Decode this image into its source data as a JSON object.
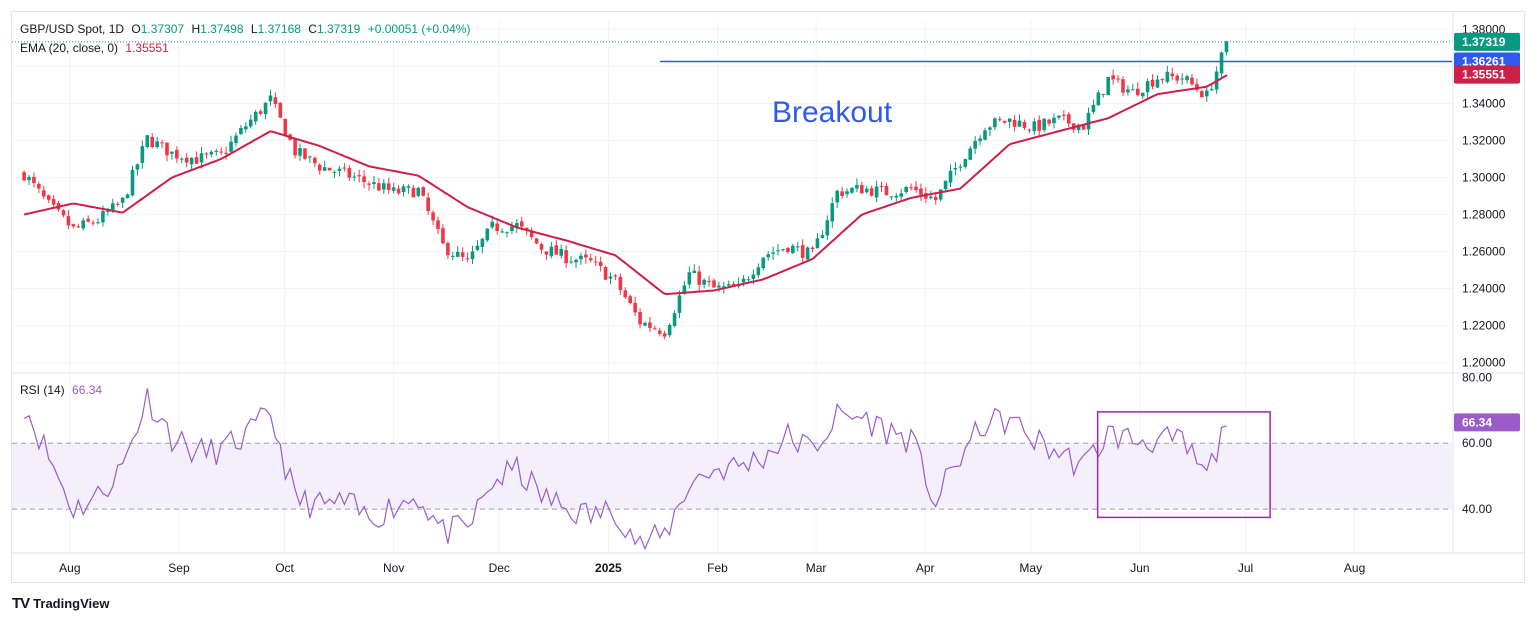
{
  "header": {
    "symbol": "GBP/USD Spot, 1D",
    "open_label": "O",
    "open": "1.37307",
    "high_label": "H",
    "high": "1.37498",
    "low_label": "L",
    "low": "1.37168",
    "close_label": "C",
    "close": "1.37319",
    "change": "+0.00051 (+0.04%)",
    "ema_label": "EMA (20, close, 0)",
    "ema_value": "1.35551",
    "rsi_label": "RSI (14)",
    "rsi_value": "66.34"
  },
  "annotation": {
    "breakout_text": "Breakout",
    "breakout_level": 1.3626
  },
  "badges": {
    "close": "1.37319",
    "breakout": "1.36261",
    "ema": "1.35551",
    "rsi": "66.34"
  },
  "brand": {
    "logo": "TV",
    "name": "TradingView"
  },
  "colors": {
    "up": "#089981",
    "down": "#f23645",
    "ema": "#cc1f4a",
    "rsi": "#9c5cc7",
    "rsi_band": "#f3effb",
    "breakout": "#2f5be8",
    "box": "#9c27b0"
  },
  "chart_data": [
    {
      "type": "candlestick",
      "title": "GBP/USD Spot, 1D",
      "x_tick_labels": [
        "Aug",
        "Sep",
        "Oct",
        "Nov",
        "Dec",
        "2025",
        "Feb",
        "Mar",
        "Apr",
        "May",
        "Jun",
        "Jul",
        "Aug"
      ],
      "y_tick_labels": [
        "1.20000",
        "1.22000",
        "1.24000",
        "1.26000",
        "1.28000",
        "1.30000",
        "1.32000",
        "1.34000",
        "1.36000",
        "1.38000"
      ],
      "ylim": [
        1.195,
        1.385
      ],
      "grid": true,
      "price_weekly": [
        [
          "2024-07-19",
          1.302
        ],
        [
          "2024-07-26",
          1.285
        ],
        [
          "2024-08-02",
          1.272
        ],
        [
          "2024-08-09",
          1.277
        ],
        [
          "2024-08-16",
          1.287
        ],
        [
          "2024-08-23",
          1.321
        ],
        [
          "2024-08-30",
          1.313
        ],
        [
          "2024-09-06",
          1.31
        ],
        [
          "2024-09-13",
          1.312
        ],
        [
          "2024-09-20",
          1.328
        ],
        [
          "2024-09-27",
          1.342
        ],
        [
          "2024-10-04",
          1.314
        ],
        [
          "2024-10-11",
          1.306
        ],
        [
          "2024-10-18",
          1.302
        ],
        [
          "2024-10-25",
          1.297
        ],
        [
          "2024-11-01",
          1.292
        ],
        [
          "2024-11-08",
          1.293
        ],
        [
          "2024-11-15",
          1.263
        ],
        [
          "2024-11-22",
          1.254
        ],
        [
          "2024-11-29",
          1.273
        ],
        [
          "2024-12-06",
          1.274
        ],
        [
          "2024-12-13",
          1.262
        ],
        [
          "2024-12-20",
          1.257
        ],
        [
          "2024-12-27",
          1.254
        ],
        [
          "2025-01-03",
          1.244
        ],
        [
          "2025-01-10",
          1.222
        ],
        [
          "2025-01-17",
          1.217
        ],
        [
          "2025-01-24",
          1.248
        ],
        [
          "2025-01-31",
          1.24
        ],
        [
          "2025-02-07",
          1.24
        ],
        [
          "2025-02-14",
          1.258
        ],
        [
          "2025-02-21",
          1.263
        ],
        [
          "2025-02-28",
          1.258
        ],
        [
          "2025-03-07",
          1.292
        ],
        [
          "2025-03-14",
          1.294
        ],
        [
          "2025-03-21",
          1.292
        ],
        [
          "2025-03-28",
          1.294
        ],
        [
          "2025-04-04",
          1.288
        ],
        [
          "2025-04-11",
          1.309
        ],
        [
          "2025-04-18",
          1.328
        ],
        [
          "2025-04-25",
          1.331
        ],
        [
          "2025-05-02",
          1.327
        ],
        [
          "2025-05-09",
          1.331
        ],
        [
          "2025-05-16",
          1.328
        ],
        [
          "2025-05-23",
          1.353
        ],
        [
          "2025-05-30",
          1.346
        ],
        [
          "2025-06-06",
          1.354
        ],
        [
          "2025-06-13",
          1.354
        ],
        [
          "2025-06-20",
          1.344
        ],
        [
          "2025-06-26",
          1.373
        ]
      ],
      "series": [
        {
          "name": "EMA (20, close, 0)",
          "values": [
            [
              "2024-07-19",
              1.28
            ],
            [
              "2024-08-02",
              1.286
            ],
            [
              "2024-08-16",
              1.281
            ],
            [
              "2024-08-30",
              1.3
            ],
            [
              "2024-09-13",
              1.31
            ],
            [
              "2024-09-27",
              1.325
            ],
            [
              "2024-10-11",
              1.317
            ],
            [
              "2024-10-25",
              1.306
            ],
            [
              "2024-11-08",
              1.301
            ],
            [
              "2024-11-22",
              1.284
            ],
            [
              "2024-12-06",
              1.273
            ],
            [
              "2024-12-20",
              1.266
            ],
            [
              "2025-01-03",
              1.258
            ],
            [
              "2025-01-17",
              1.237
            ],
            [
              "2025-01-31",
              1.239
            ],
            [
              "2025-02-14",
              1.245
            ],
            [
              "2025-02-28",
              1.256
            ],
            [
              "2025-03-14",
              1.28
            ],
            [
              "2025-03-28",
              1.289
            ],
            [
              "2025-04-11",
              1.294
            ],
            [
              "2025-04-25",
              1.318
            ],
            [
              "2025-05-09",
              1.325
            ],
            [
              "2025-05-23",
              1.332
            ],
            [
              "2025-06-06",
              1.345
            ],
            [
              "2025-06-20",
              1.349
            ],
            [
              "2025-06-26",
              1.3555
            ]
          ]
        }
      ],
      "breakout_line": 1.3626
    },
    {
      "type": "line",
      "title": "RSI (14)",
      "y_tick_labels": [
        "40.00",
        "60.00",
        "80.00"
      ],
      "ylim": [
        27,
        81
      ],
      "band": [
        40,
        60
      ],
      "series": [
        {
          "name": "RSI (14)",
          "values": [
            [
              "2024-07-19",
              72
            ],
            [
              "2024-07-26",
              56
            ],
            [
              "2024-08-02",
              40
            ],
            [
              "2024-08-09",
              44
            ],
            [
              "2024-08-16",
              53
            ],
            [
              "2024-08-23",
              74
            ],
            [
              "2024-08-30",
              62
            ],
            [
              "2024-09-06",
              57
            ],
            [
              "2024-09-13",
              58
            ],
            [
              "2024-09-20",
              62
            ],
            [
              "2024-09-27",
              69
            ],
            [
              "2024-10-04",
              43
            ],
            [
              "2024-10-11",
              41
            ],
            [
              "2024-10-18",
              42
            ],
            [
              "2024-10-25",
              37
            ],
            [
              "2024-11-01",
              41
            ],
            [
              "2024-11-08",
              44
            ],
            [
              "2024-11-15",
              33
            ],
            [
              "2024-11-22",
              34
            ],
            [
              "2024-11-29",
              48
            ],
            [
              "2024-12-06",
              52
            ],
            [
              "2024-12-13",
              44
            ],
            [
              "2024-12-20",
              40
            ],
            [
              "2024-12-27",
              38
            ],
            [
              "2025-01-03",
              40
            ],
            [
              "2025-01-10",
              29
            ],
            [
              "2025-01-17",
              32
            ],
            [
              "2025-01-24",
              48
            ],
            [
              "2025-01-31",
              52
            ],
            [
              "2025-02-07",
              53
            ],
            [
              "2025-02-14",
              56
            ],
            [
              "2025-02-21",
              62
            ],
            [
              "2025-02-28",
              58
            ],
            [
              "2025-03-07",
              68
            ],
            [
              "2025-03-14",
              68
            ],
            [
              "2025-03-21",
              64
            ],
            [
              "2025-03-28",
              61
            ],
            [
              "2025-04-04",
              42
            ],
            [
              "2025-04-11",
              56
            ],
            [
              "2025-04-18",
              66
            ],
            [
              "2025-04-25",
              67
            ],
            [
              "2025-05-02",
              61
            ],
            [
              "2025-05-09",
              57
            ],
            [
              "2025-05-16",
              53
            ],
            [
              "2025-05-23",
              63
            ],
            [
              "2025-05-30",
              61
            ],
            [
              "2025-06-06",
              61
            ],
            [
              "2025-06-13",
              60
            ],
            [
              "2025-06-20",
              50
            ],
            [
              "2025-06-26",
              66.34
            ]
          ]
        }
      ]
    }
  ]
}
